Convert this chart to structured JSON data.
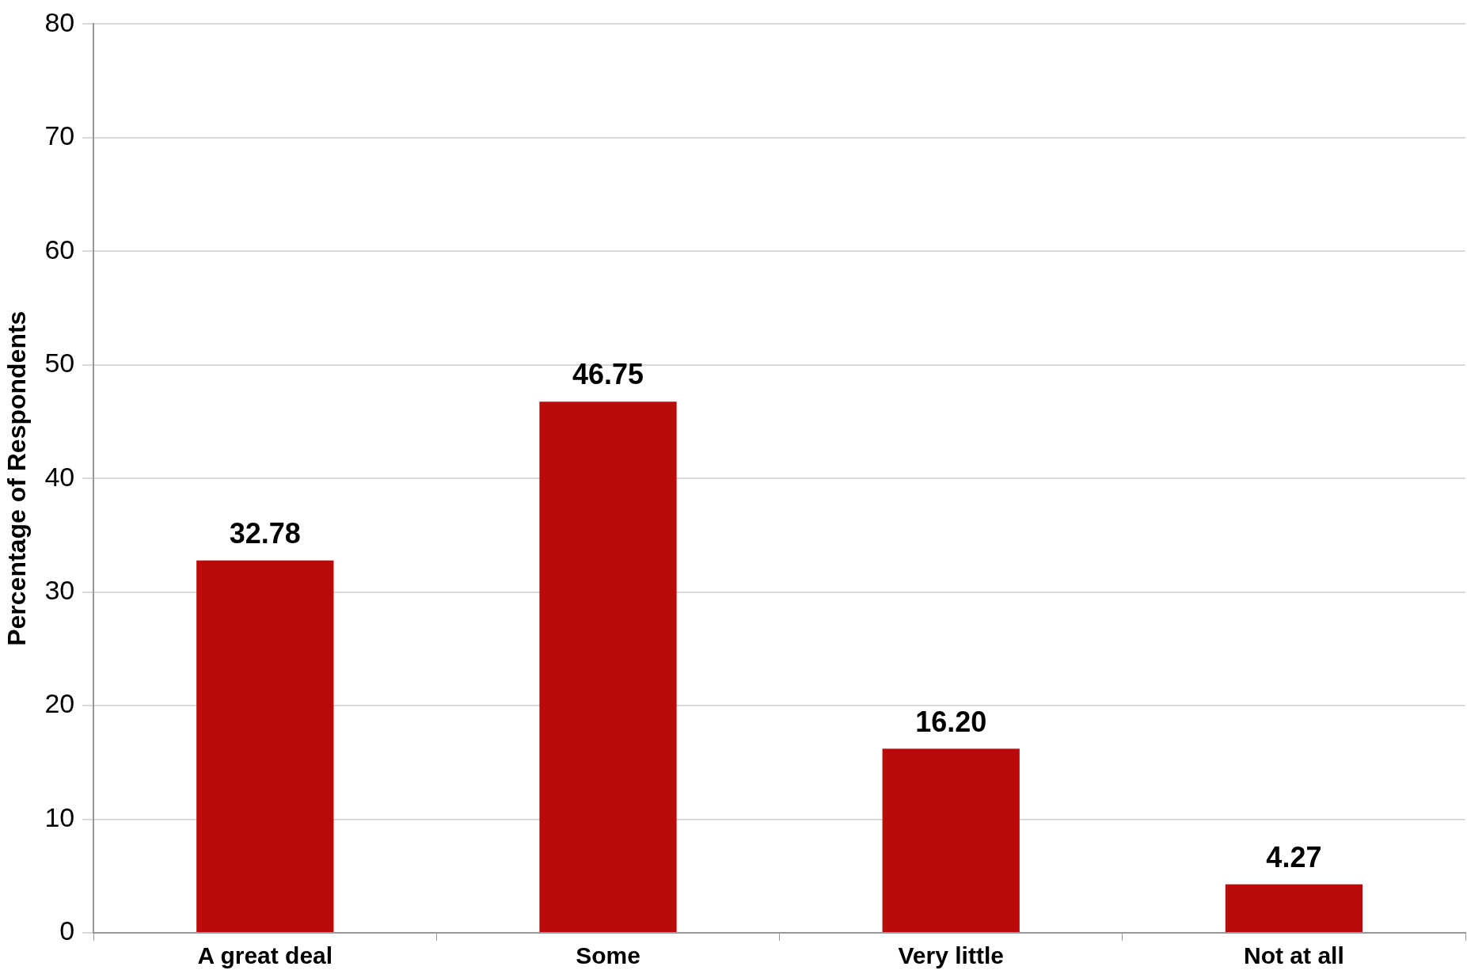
{
  "chart_data": {
    "type": "bar",
    "ylabel": "Percentage of Respondents",
    "categories": [
      "A great deal",
      "Some",
      "Very little",
      "Not at all"
    ],
    "values": [
      32.78,
      46.75,
      16.2,
      4.27
    ],
    "color": "#bb0a0a",
    "value_labels": [
      "32.78",
      "46.75",
      "16.20",
      "4.27"
    ],
    "ylim": [
      0,
      80
    ],
    "yticks": [
      0,
      10,
      20,
      30,
      40,
      50,
      60,
      70,
      80
    ],
    "grid": "y",
    "legend": false
  }
}
